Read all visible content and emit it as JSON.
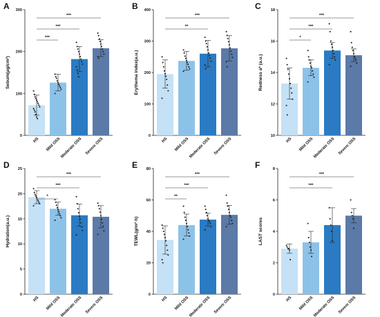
{
  "chart_data": [
    {
      "type": "bar",
      "panel": "A",
      "ylabel": "Sebum(μg/cm²)",
      "ylim": [
        0,
        300
      ],
      "yticks": [
        0,
        100,
        200,
        300
      ],
      "categories": [
        "HS",
        "Mild OSS",
        "Moderate OSS",
        "Severe OSS"
      ],
      "values": [
        72,
        126,
        182,
        208
      ],
      "errors": [
        24,
        20,
        30,
        20
      ],
      "points": [
        [
          106,
          98,
          92,
          88,
          84,
          80,
          76,
          72,
          68,
          64,
          60,
          56,
          50,
          44,
          40
        ],
        [
          146,
          140,
          136,
          130,
          126,
          122,
          118,
          114,
          110,
          100
        ],
        [
          222,
          212,
          206,
          200,
          194,
          188,
          182,
          176,
          170,
          164,
          156,
          148,
          140
        ],
        [
          244,
          238,
          230,
          224,
          218,
          212,
          206,
          200,
          194,
          188,
          184
        ]
      ],
      "comparisons": [
        {
          "from": 0,
          "to": 1,
          "label": "***"
        },
        {
          "from": 0,
          "to": 2,
          "label": "***"
        },
        {
          "from": 0,
          "to": 3,
          "label": "***"
        }
      ]
    },
    {
      "type": "bar",
      "panel": "B",
      "ylabel": "Erythema index(a.u.)",
      "ylim": [
        0,
        400
      ],
      "yticks": [
        0,
        100,
        200,
        300,
        400
      ],
      "categories": [
        "HS",
        "Mild OSS",
        "Moderate OSS",
        "Severe OSS"
      ],
      "values": [
        195,
        237,
        260,
        277
      ],
      "errors": [
        45,
        30,
        42,
        40
      ],
      "points": [
        [
          250,
          232,
          218,
          205,
          196,
          188,
          178,
          160,
          142,
          118
        ],
        [
          272,
          262,
          252,
          245,
          238,
          232,
          226,
          218,
          212,
          204
        ],
        [
          312,
          300,
          292,
          282,
          272,
          262,
          254,
          246,
          236,
          224,
          212
        ],
        [
          330,
          318,
          308,
          298,
          288,
          278,
          268,
          258,
          248,
          234,
          218
        ]
      ],
      "comparisons": [
        {
          "from": 0,
          "to": 2,
          "label": "**"
        },
        {
          "from": 0,
          "to": 3,
          "label": "***"
        }
      ]
    },
    {
      "type": "bar",
      "panel": "C",
      "ylabel": "Redness a* (a.u.)",
      "ylim": [
        10,
        18
      ],
      "yticks": [
        10,
        12,
        14,
        16,
        18
      ],
      "categories": [
        "HS",
        "Mild OSS",
        "Moderate OSS",
        "Severe OSS"
      ],
      "values": [
        13.3,
        14.3,
        15.4,
        15.1
      ],
      "errors": [
        1.0,
        0.5,
        0.5,
        0.4
      ],
      "points": [
        [
          14.9,
          14.5,
          14.2,
          13.9,
          13.6,
          13.3,
          13.0,
          12.7,
          12.3,
          11.9,
          11.3
        ],
        [
          15.4,
          15.0,
          14.8,
          14.6,
          14.4,
          14.3,
          14.1,
          13.9,
          13.7,
          13.4
        ],
        [
          17.1,
          16.6,
          16.0,
          15.8,
          15.6,
          15.4,
          15.2,
          15.0,
          14.8,
          14.5
        ],
        [
          16.6,
          15.9,
          15.6,
          15.4,
          15.2,
          15.0,
          14.9,
          14.8,
          14.6,
          14.4
        ]
      ],
      "comparisons": [
        {
          "from": 0,
          "to": 1,
          "label": "*"
        },
        {
          "from": 0,
          "to": 2,
          "label": "***"
        },
        {
          "from": 0,
          "to": 3,
          "label": "***"
        }
      ]
    },
    {
      "type": "bar",
      "panel": "D",
      "ylabel": "Hydration(a.u.)",
      "ylim": [
        0,
        25
      ],
      "yticks": [
        0,
        5,
        10,
        15,
        20,
        25
      ],
      "categories": [
        "HS",
        "Mild OSS",
        "Moderate OSS",
        "Severe OSS"
      ],
      "values": [
        19.3,
        17.0,
        15.7,
        15.4
      ],
      "errors": [
        1.3,
        1.3,
        2.2,
        2.2
      ],
      "points": [
        [
          21.0,
          20.2,
          19.8,
          19.5,
          19.2,
          18.9,
          18.6,
          18.3,
          18.0,
          17.6
        ],
        [
          18.8,
          18.3,
          17.7,
          17.2,
          16.8,
          16.4,
          16.0,
          15.6,
          15.2,
          14.7
        ],
        [
          19.4,
          18.0,
          17.0,
          16.2,
          15.5,
          14.9,
          14.2,
          13.4,
          12.7,
          11.8
        ],
        [
          18.1,
          17.6,
          17.0,
          16.3,
          15.6,
          14.9,
          14.2,
          13.5,
          12.6,
          11.9
        ]
      ],
      "comparisons": [
        {
          "from": 0,
          "to": 1,
          "label": "*"
        },
        {
          "from": 0,
          "to": 2,
          "label": "***"
        },
        {
          "from": 0,
          "to": 3,
          "label": "***"
        }
      ]
    },
    {
      "type": "bar",
      "panel": "E",
      "ylabel": "TEWL(g/m²·h)",
      "ylim": [
        0,
        80
      ],
      "yticks": [
        0,
        20,
        40,
        60,
        80
      ],
      "categories": [
        "HS",
        "Mild OSS",
        "Moderate OSS",
        "Severe OSS"
      ],
      "values": [
        34.5,
        44.0,
        47.5,
        50.5
      ],
      "errors": [
        9.0,
        7.0,
        4.0,
        6.0
      ],
      "points": [
        [
          44,
          42,
          40,
          38,
          36,
          34,
          31,
          28,
          25,
          22,
          20
        ],
        [
          56,
          52,
          49,
          47,
          45,
          43,
          41,
          39,
          37,
          35
        ],
        [
          56,
          54,
          52,
          50,
          48,
          47,
          46,
          45,
          43,
          41
        ],
        [
          63,
          58,
          56,
          54,
          52,
          50,
          49,
          47,
          45,
          43
        ]
      ],
      "comparisons": [
        {
          "from": 0,
          "to": 1,
          "label": "**"
        },
        {
          "from": 0,
          "to": 2,
          "label": "***"
        },
        {
          "from": 0,
          "to": 3,
          "label": "***"
        }
      ]
    },
    {
      "type": "bar",
      "panel": "F",
      "ylabel": "LAST scores",
      "ylim": [
        0,
        8
      ],
      "yticks": [
        0,
        2,
        4,
        6,
        8
      ],
      "categories": [
        "HS",
        "Mild OSS",
        "Moderate OSS",
        "Severe OSS"
      ],
      "values": [
        2.9,
        3.3,
        4.4,
        5.0
      ],
      "errors": [
        0.3,
        0.7,
        1.1,
        0.45
      ],
      "points": [
        [
          3.1,
          3.0,
          2.9,
          2.9,
          2.8,
          2.2
        ],
        [
          4.5,
          3.6,
          3.3,
          3.0,
          2.8,
          2.4
        ],
        [
          5.5,
          4.8,
          4.4,
          4.0,
          3.4
        ],
        [
          6.0,
          5.2,
          5.0,
          4.8,
          4.2
        ]
      ],
      "comparisons": [
        {
          "from": 0,
          "to": 2,
          "label": "***"
        },
        {
          "from": 0,
          "to": 3,
          "label": "***"
        }
      ]
    }
  ],
  "colors": [
    "#c4e1f6",
    "#8dc2e8",
    "#2a7bc3",
    "#5b7aa8"
  ]
}
